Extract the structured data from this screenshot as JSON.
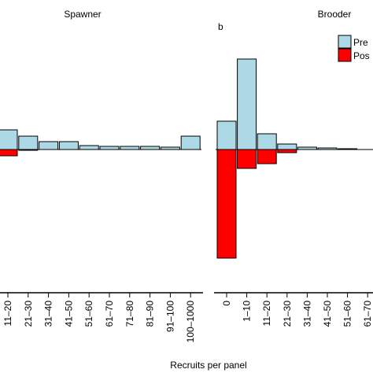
{
  "chart_data": [
    {
      "type": "bar",
      "title": "Spawner",
      "xlabel": "Recruits per panel",
      "categories": [
        "11–20",
        "21–30",
        "31–40",
        "41–50",
        "51–60",
        "61–70",
        "71–80",
        "81–90",
        "91–100",
        "100–1000"
      ],
      "series": [
        {
          "color": "#add8e6",
          "values": [
            25,
            17,
            10,
            10,
            5,
            4,
            4,
            4,
            3,
            17
          ]
        },
        {
          "color": "#ff0000",
          "values": [
            -8,
            -1,
            0,
            0,
            0,
            0,
            0,
            0,
            0,
            0
          ]
        }
      ]
    },
    {
      "type": "bar",
      "title": "Brooder",
      "panel_label": "b",
      "categories": [
        "0",
        "1–10",
        "11–20",
        "21–30",
        "31–40",
        "41–50",
        "51–60",
        "61–70"
      ],
      "series": [
        {
          "name": "Pre",
          "color": "#add8e6",
          "values": [
            36,
            115,
            20,
            7,
            3,
            2,
            1,
            0
          ]
        },
        {
          "name": "Pos",
          "color": "#ff0000",
          "values": [
            -138,
            -24,
            -18,
            -4,
            0,
            0,
            0,
            0
          ]
        }
      ]
    }
  ]
}
